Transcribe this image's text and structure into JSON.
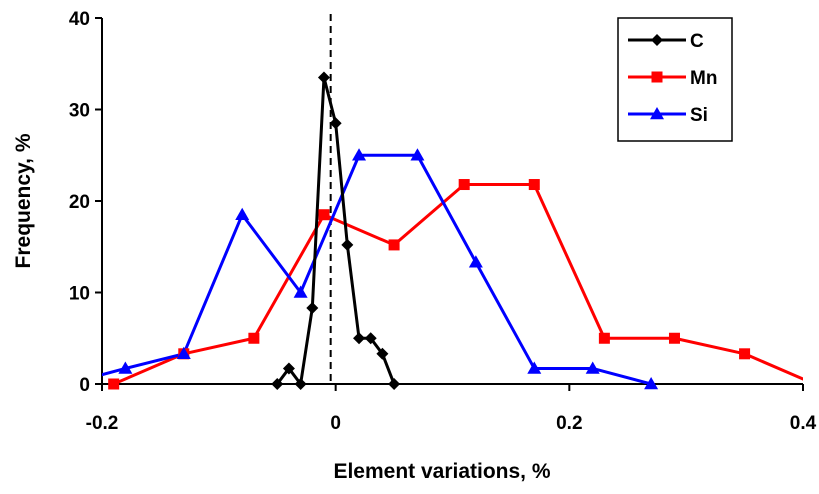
{
  "chart_data": {
    "type": "line",
    "xlabel": "Element variations, %",
    "ylabel": "Frequency, %",
    "xlim": [
      -0.2,
      0.4
    ],
    "ylim": [
      0,
      40
    ],
    "xticks": [
      -0.2,
      0,
      0.2,
      0.4
    ],
    "xtick_labels": [
      "-0.2",
      "0",
      "0.2",
      "0.4"
    ],
    "yticks": [
      0,
      10,
      20,
      30,
      40
    ],
    "ytick_labels": [
      "0",
      "10",
      "20",
      "30",
      "40"
    ],
    "grid": false,
    "legend_position": "top-right",
    "reference_line": {
      "x": 0,
      "style": "dashed"
    },
    "series": [
      {
        "name": "C",
        "color": "#000000",
        "marker": "diamond",
        "x": [
          -0.05,
          -0.04,
          -0.03,
          -0.02,
          -0.01,
          0.0,
          0.01,
          0.02,
          0.03,
          0.04,
          0.05
        ],
        "y": [
          0,
          1.7,
          0,
          8.3,
          33.5,
          28.5,
          15.2,
          5.0,
          5.0,
          3.3,
          0
        ]
      },
      {
        "name": "Mn",
        "color": "#ff0000",
        "marker": "square",
        "x": [
          -0.19,
          -0.13,
          -0.07,
          -0.01,
          0.05,
          0.11,
          0.17,
          0.23,
          0.29,
          0.35,
          0.41
        ],
        "y": [
          0,
          3.3,
          5.0,
          18.5,
          15.2,
          21.8,
          21.8,
          5.0,
          5.0,
          3.3,
          0
        ]
      },
      {
        "name": "Si",
        "color": "#0000ff",
        "marker": "triangle",
        "x": [
          -0.23,
          -0.18,
          -0.13,
          -0.08,
          -0.03,
          0.02,
          0.07,
          0.12,
          0.17,
          0.22,
          0.27
        ],
        "y": [
          0,
          1.7,
          3.3,
          18.5,
          10.0,
          25.0,
          25.0,
          13.3,
          1.7,
          1.7,
          0
        ]
      }
    ]
  }
}
